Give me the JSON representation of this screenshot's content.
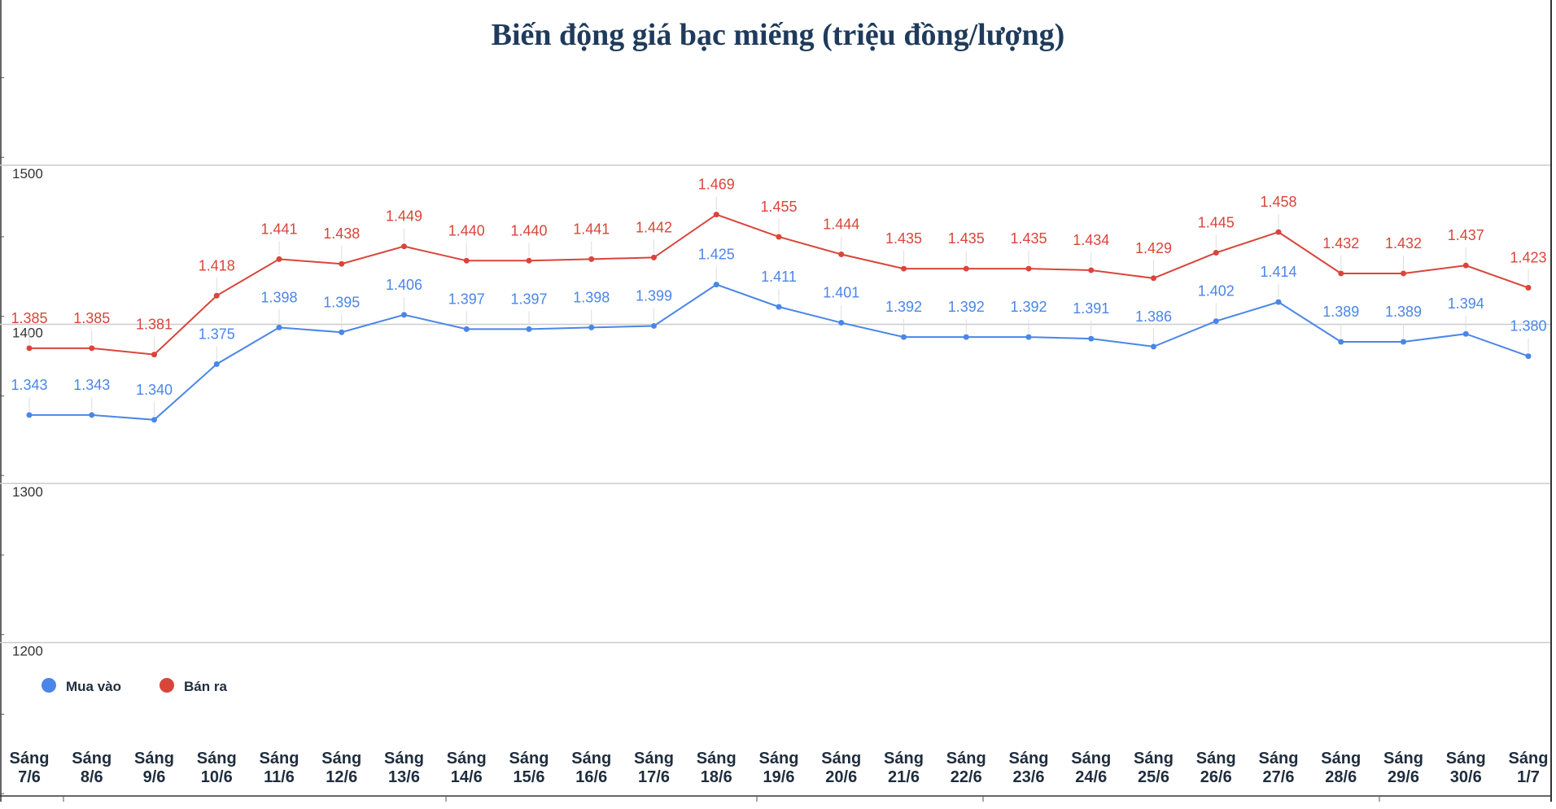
{
  "chart_data": {
    "type": "line",
    "title": "Biến động giá bạc miếng (triệu đồng/lượng)",
    "xlabel": "",
    "ylabel": "",
    "categories": [
      [
        "Sáng",
        "7/6"
      ],
      [
        "Sáng",
        "8/6"
      ],
      [
        "Sáng",
        "9/6"
      ],
      [
        "Sáng",
        "10/6"
      ],
      [
        "Sáng",
        "11/6"
      ],
      [
        "Sáng",
        "12/6"
      ],
      [
        "Sáng",
        "13/6"
      ],
      [
        "Sáng",
        "14/6"
      ],
      [
        "Sáng",
        "15/6"
      ],
      [
        "Sáng",
        "16/6"
      ],
      [
        "Sáng",
        "17/6"
      ],
      [
        "Sáng",
        "18/6"
      ],
      [
        "Sáng",
        "19/6"
      ],
      [
        "Sáng",
        "20/6"
      ],
      [
        "Sáng",
        "21/6"
      ],
      [
        "Sáng",
        "22/6"
      ],
      [
        "Sáng",
        "23/6"
      ],
      [
        "Sáng",
        "24/6"
      ],
      [
        "Sáng",
        "25/6"
      ],
      [
        "Sáng",
        "26/6"
      ],
      [
        "Sáng",
        "27/6"
      ],
      [
        "Sáng",
        "28/6"
      ],
      [
        "Sáng",
        "29/6"
      ],
      [
        "Sáng",
        "30/6"
      ],
      [
        "Sáng",
        "1/7"
      ]
    ],
    "series": [
      {
        "name": "Mua vào",
        "color": "#4a86e8",
        "values": [
          1343,
          1343,
          1340,
          1375,
          1398,
          1395,
          1406,
          1397,
          1397,
          1398,
          1399,
          1425,
          1411,
          1401,
          1392,
          1392,
          1392,
          1391,
          1386,
          1402,
          1414,
          1389,
          1389,
          1394,
          1380
        ],
        "labels": [
          "1.343",
          "1.343",
          "1.340",
          "1.375",
          "1.398",
          "1.395",
          "1.406",
          "1.397",
          "1.397",
          "1.398",
          "1.399",
          "1.425",
          "1.411",
          "1.401",
          "1.392",
          "1.392",
          "1.392",
          "1.391",
          "1.386",
          "1.402",
          "1.414",
          "1.389",
          "1.389",
          "1.394",
          "1.380"
        ]
      },
      {
        "name": "Bán ra",
        "color": "#d9453a",
        "values": [
          1385,
          1385,
          1381,
          1418,
          1441,
          1438,
          1449,
          1440,
          1440,
          1441,
          1442,
          1469,
          1455,
          1444,
          1435,
          1435,
          1435,
          1434,
          1429,
          1445,
          1458,
          1432,
          1432,
          1437,
          1423
        ],
        "labels": [
          "1.385",
          "1.385",
          "1.381",
          "1.418",
          "1.441",
          "1.438",
          "1.449",
          "1.440",
          "1.440",
          "1.441",
          "1.442",
          "1.469",
          "1.455",
          "1.444",
          "1.435",
          "1.435",
          "1.435",
          "1.434",
          "1.429",
          "1.445",
          "1.458",
          "1.432",
          "1.432",
          "1.437",
          "1.423"
        ]
      }
    ],
    "yticks": [
      "1500",
      "1400",
      "1300",
      "1200"
    ],
    "ytick_values": [
      1500,
      1400,
      1300,
      1200
    ],
    "ylim": [
      1105,
      1605
    ],
    "grid": true,
    "legend_position": "bottom-left",
    "title_color": "#1f3b5c"
  }
}
